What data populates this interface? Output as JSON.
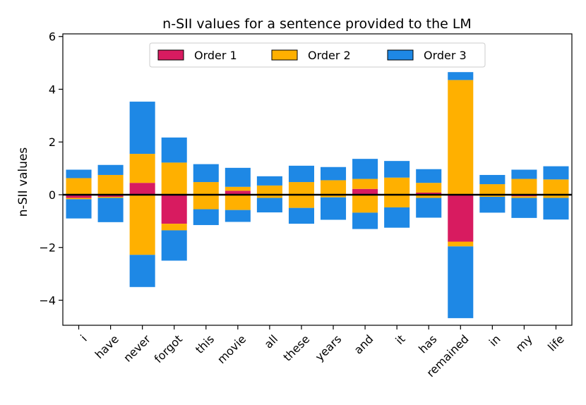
{
  "chart_data": {
    "type": "bar",
    "stacked": true,
    "title": "n-SII values for a sentence provided to the LM",
    "xlabel": "",
    "ylabel": "n-SII values",
    "ylim": [
      -4.95,
      6.1
    ],
    "yticks": [
      -4,
      -2,
      0,
      2,
      4,
      6
    ],
    "ytick_labels": [
      "−4",
      "−2",
      "0",
      "2",
      "4",
      "6"
    ],
    "legend_position": "top-center",
    "categories": [
      "i",
      "have",
      "never",
      "forgot",
      "this",
      "movie",
      "all",
      "these",
      "years",
      "and",
      "it",
      "has",
      "remained",
      "in",
      "my",
      "life"
    ],
    "series": [
      {
        "name": "Order 1",
        "color": "#d81b60",
        "pos": [
          0,
          0,
          0.45,
          0,
          0,
          0.15,
          0,
          0,
          0,
          0.22,
          0,
          0.08,
          0,
          0,
          0,
          0
        ],
        "neg": [
          -0.12,
          -0.08,
          0,
          -1.1,
          0,
          0,
          0,
          0,
          0,
          0,
          0,
          0,
          -1.78,
          0,
          -0.06,
          0
        ]
      },
      {
        "name": "Order 2",
        "color": "#ffb000",
        "pos": [
          0.63,
          0.75,
          1.1,
          1.22,
          0.48,
          0.15,
          0.35,
          0.48,
          0.55,
          0.38,
          0.65,
          0.37,
          4.35,
          0.4,
          0.6,
          0.58
        ],
        "neg": [
          -0.05,
          -0.04,
          -2.28,
          -0.25,
          -0.55,
          -0.58,
          -0.12,
          -0.5,
          -0.1,
          -0.68,
          -0.48,
          -0.12,
          -0.18,
          -0.08,
          -0.06,
          -0.12
        ]
      },
      {
        "name": "Order 3",
        "color": "#1e88e5",
        "pos": [
          0.32,
          0.38,
          1.98,
          0.95,
          0.68,
          0.72,
          0.35,
          0.62,
          0.5,
          0.76,
          0.63,
          0.52,
          0.3,
          0.35,
          0.35,
          0.5
        ],
        "neg": [
          -0.73,
          -0.92,
          -1.22,
          -1.15,
          -0.6,
          -0.45,
          -0.55,
          -0.6,
          -0.85,
          -0.62,
          -0.77,
          -0.75,
          -2.72,
          -0.6,
          -0.76,
          -0.82
        ]
      }
    ]
  }
}
